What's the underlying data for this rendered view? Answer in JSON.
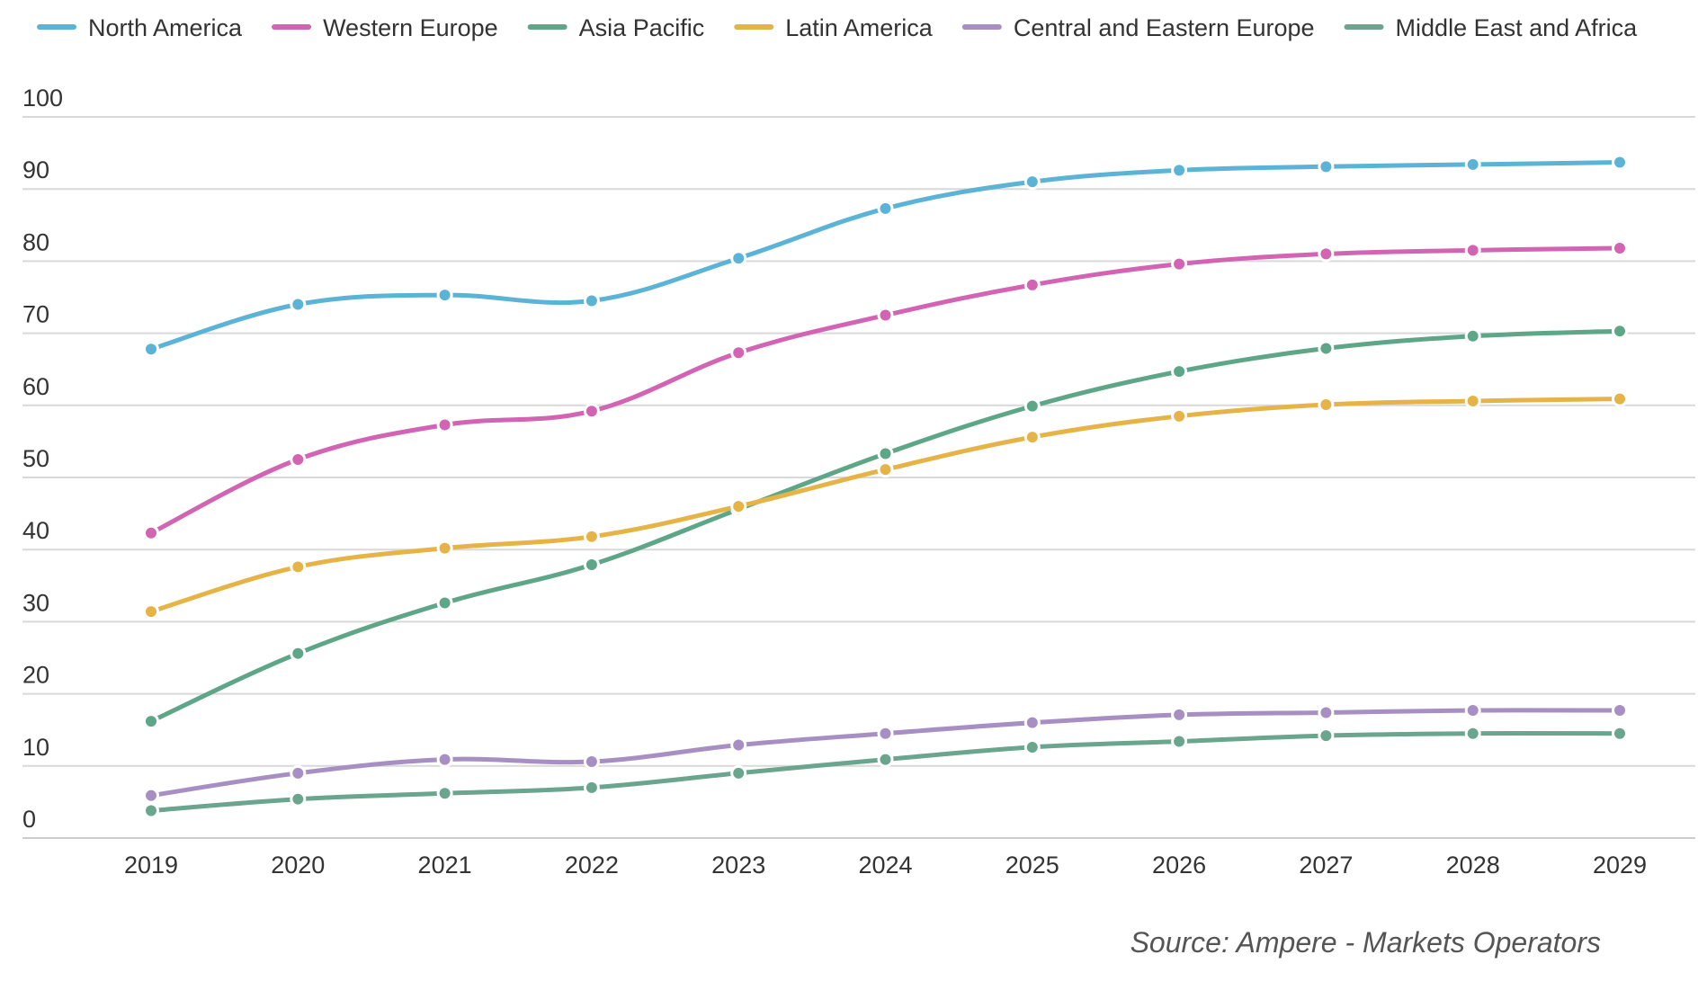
{
  "chart_data": {
    "type": "line",
    "title": "",
    "xlabel": "",
    "ylabel": "",
    "x": [
      "2019",
      "2020",
      "2021",
      "2022",
      "2023",
      "2024",
      "2025",
      "2026",
      "2027",
      "2028",
      "2029"
    ],
    "ylim": [
      0,
      100
    ],
    "yticks": [
      0,
      10,
      20,
      30,
      40,
      50,
      60,
      70,
      80,
      90,
      100
    ],
    "yticks_labels": [
      "0",
      "10",
      "20",
      "30",
      "40",
      "50",
      "60",
      "70",
      "80",
      "90",
      "100"
    ],
    "grid": true,
    "legend_position": "top",
    "source": "Source: Ampere - Markets Operators",
    "series": [
      {
        "name": "North America",
        "color": "#5bb3d6",
        "values": [
          67.8,
          74.0,
          75.3,
          74.5,
          80.4,
          87.3,
          91.0,
          92.6,
          93.1,
          93.4,
          93.7
        ]
      },
      {
        "name": "Western Europe",
        "color": "#d264b3",
        "values": [
          42.3,
          52.5,
          57.3,
          59.2,
          67.3,
          72.5,
          76.7,
          79.6,
          81.0,
          81.5,
          81.8
        ]
      },
      {
        "name": "Asia Pacific",
        "color": "#5ea688",
        "values": [
          16.2,
          25.6,
          32.6,
          37.9,
          45.6,
          53.3,
          59.9,
          64.7,
          67.9,
          69.6,
          70.3
        ]
      },
      {
        "name": "Latin America",
        "color": "#e6b446",
        "values": [
          31.4,
          37.6,
          40.2,
          41.8,
          46.0,
          51.1,
          55.6,
          58.5,
          60.1,
          60.6,
          60.9
        ]
      },
      {
        "name": "Central and Eastern Europe",
        "color": "#a78fc4",
        "values": [
          5.9,
          9.0,
          10.9,
          10.6,
          12.9,
          14.5,
          16.0,
          17.1,
          17.4,
          17.7,
          17.7
        ]
      },
      {
        "name": "Middle East and Africa",
        "color": "#6aa58e",
        "values": [
          3.8,
          5.4,
          6.2,
          7.0,
          9.0,
          10.9,
          12.6,
          13.4,
          14.2,
          14.5,
          14.5
        ]
      }
    ]
  }
}
